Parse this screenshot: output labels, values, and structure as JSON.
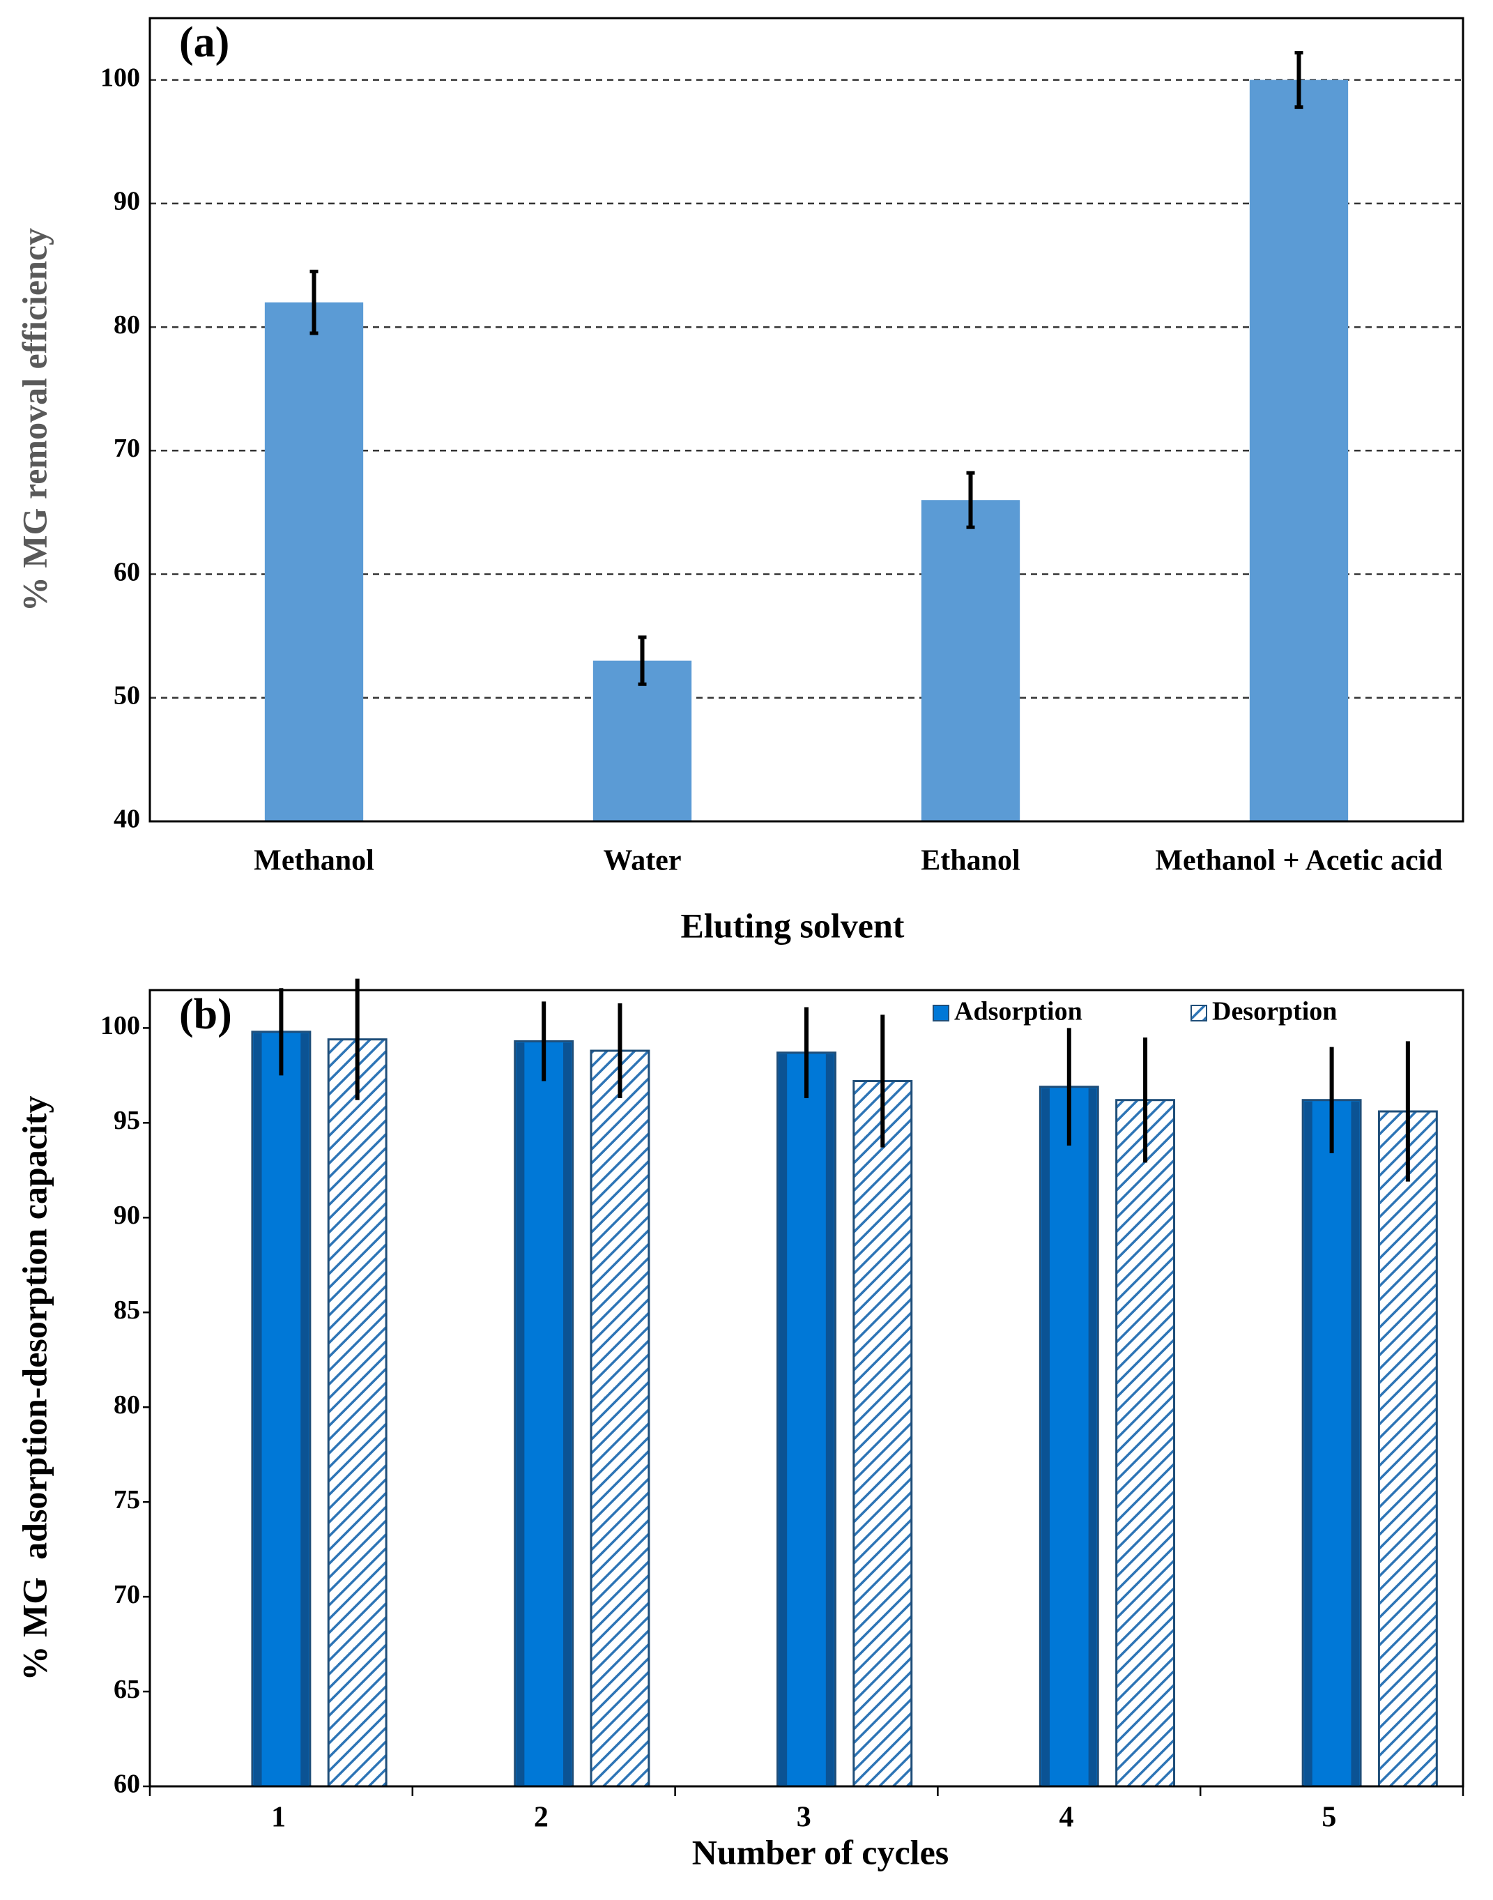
{
  "chart_data": [
    {
      "type": "bar",
      "label": "(a)",
      "categories": [
        "Methanol",
        "Water",
        "Ethanol",
        "Methanol + Acetic acid"
      ],
      "values": [
        82,
        53,
        66,
        100
      ],
      "errors": [
        2.5,
        1.9,
        2.2,
        2.2
      ],
      "color": "#5b9bd5",
      "ylim": [
        40,
        105
      ],
      "yticks": [
        40,
        50,
        60,
        70,
        80,
        90,
        100
      ],
      "grid": true,
      "ylabel": "% MG removal efficiency",
      "xlabel": "Eluting solvent"
    },
    {
      "type": "grouped-bar",
      "label": "(b)",
      "categories": [
        "1",
        "2",
        "3",
        "4",
        "5"
      ],
      "series": [
        {
          "name": "Adsorption",
          "color": "#0078d7",
          "values": [
            99.8,
            99.3,
            98.7,
            96.9,
            96.2
          ],
          "errors": [
            2.3,
            2.1,
            2.4,
            3.1,
            2.8
          ]
        },
        {
          "name": "Desorption",
          "color": "#2e75b6",
          "values": [
            99.4,
            98.8,
            97.2,
            96.2,
            95.6
          ],
          "errors": [
            3.2,
            2.5,
            3.5,
            3.3,
            3.7
          ]
        }
      ],
      "ylim": [
        60,
        102
      ],
      "yticks": [
        60,
        65,
        70,
        75,
        80,
        85,
        90,
        95,
        100
      ],
      "grid": false,
      "legend": "upper right",
      "ylabel": "% MG  adsorption-desorption capacity",
      "xlabel": "Number of cycles"
    }
  ]
}
